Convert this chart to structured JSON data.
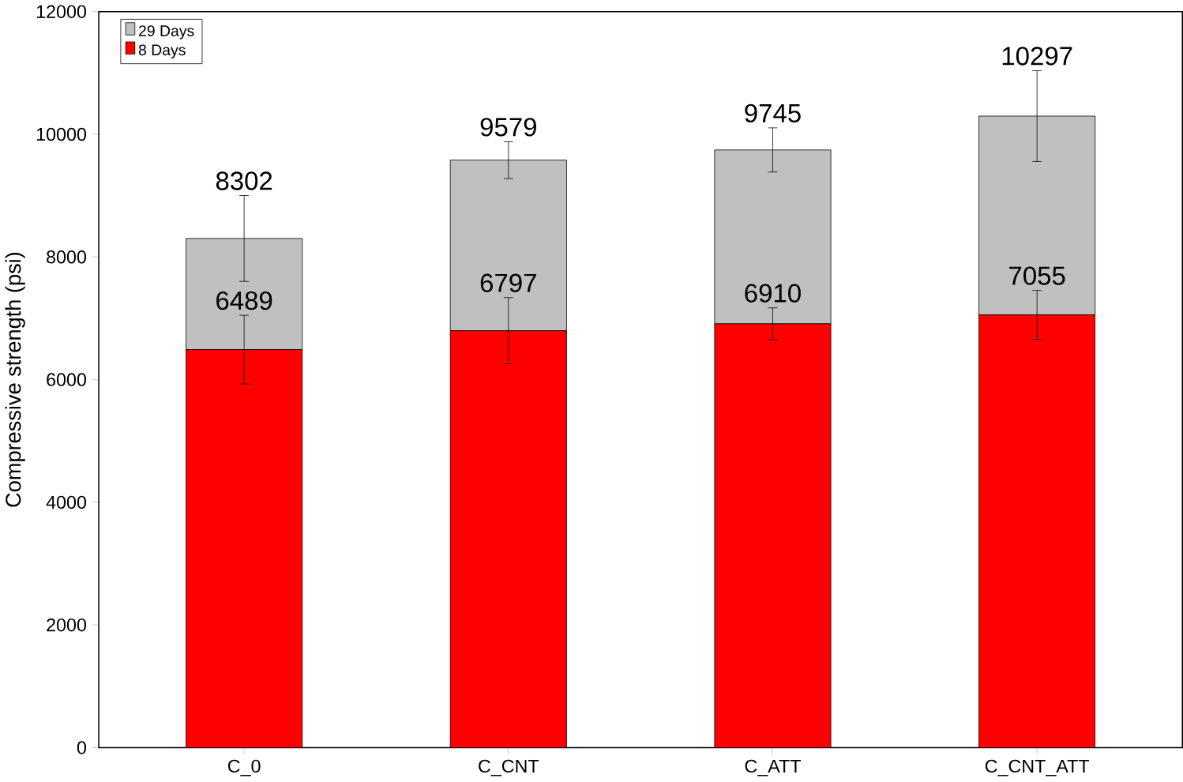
{
  "chart_data": {
    "type": "bar",
    "stacked": true,
    "ylabel": "Compressive strength (psi)",
    "categories": [
      "C_0",
      "C_CNT",
      "C_ATT",
      "C_CNT_ATT"
    ],
    "series": [
      {
        "name": "8 Days",
        "color": "#ff0000",
        "values": [
          6489,
          6797,
          6910,
          7055
        ],
        "errors": [
          560,
          540,
          260,
          400
        ],
        "value_labels": [
          "6489",
          "6797",
          "6910",
          "7055"
        ]
      },
      {
        "name": "29 Days",
        "color": "#c0c0c0",
        "values": [
          1813,
          2782,
          2835,
          3242
        ],
        "errors": [
          700,
          300,
          360,
          740
        ]
      }
    ],
    "totals": [
      "8302",
      "9579",
      "9745",
      "10297"
    ],
    "ylim": [
      0,
      12000
    ],
    "yticks": [
      0,
      2000,
      4000,
      6000,
      8000,
      10000,
      12000
    ],
    "legend": "top left",
    "grid": false
  }
}
